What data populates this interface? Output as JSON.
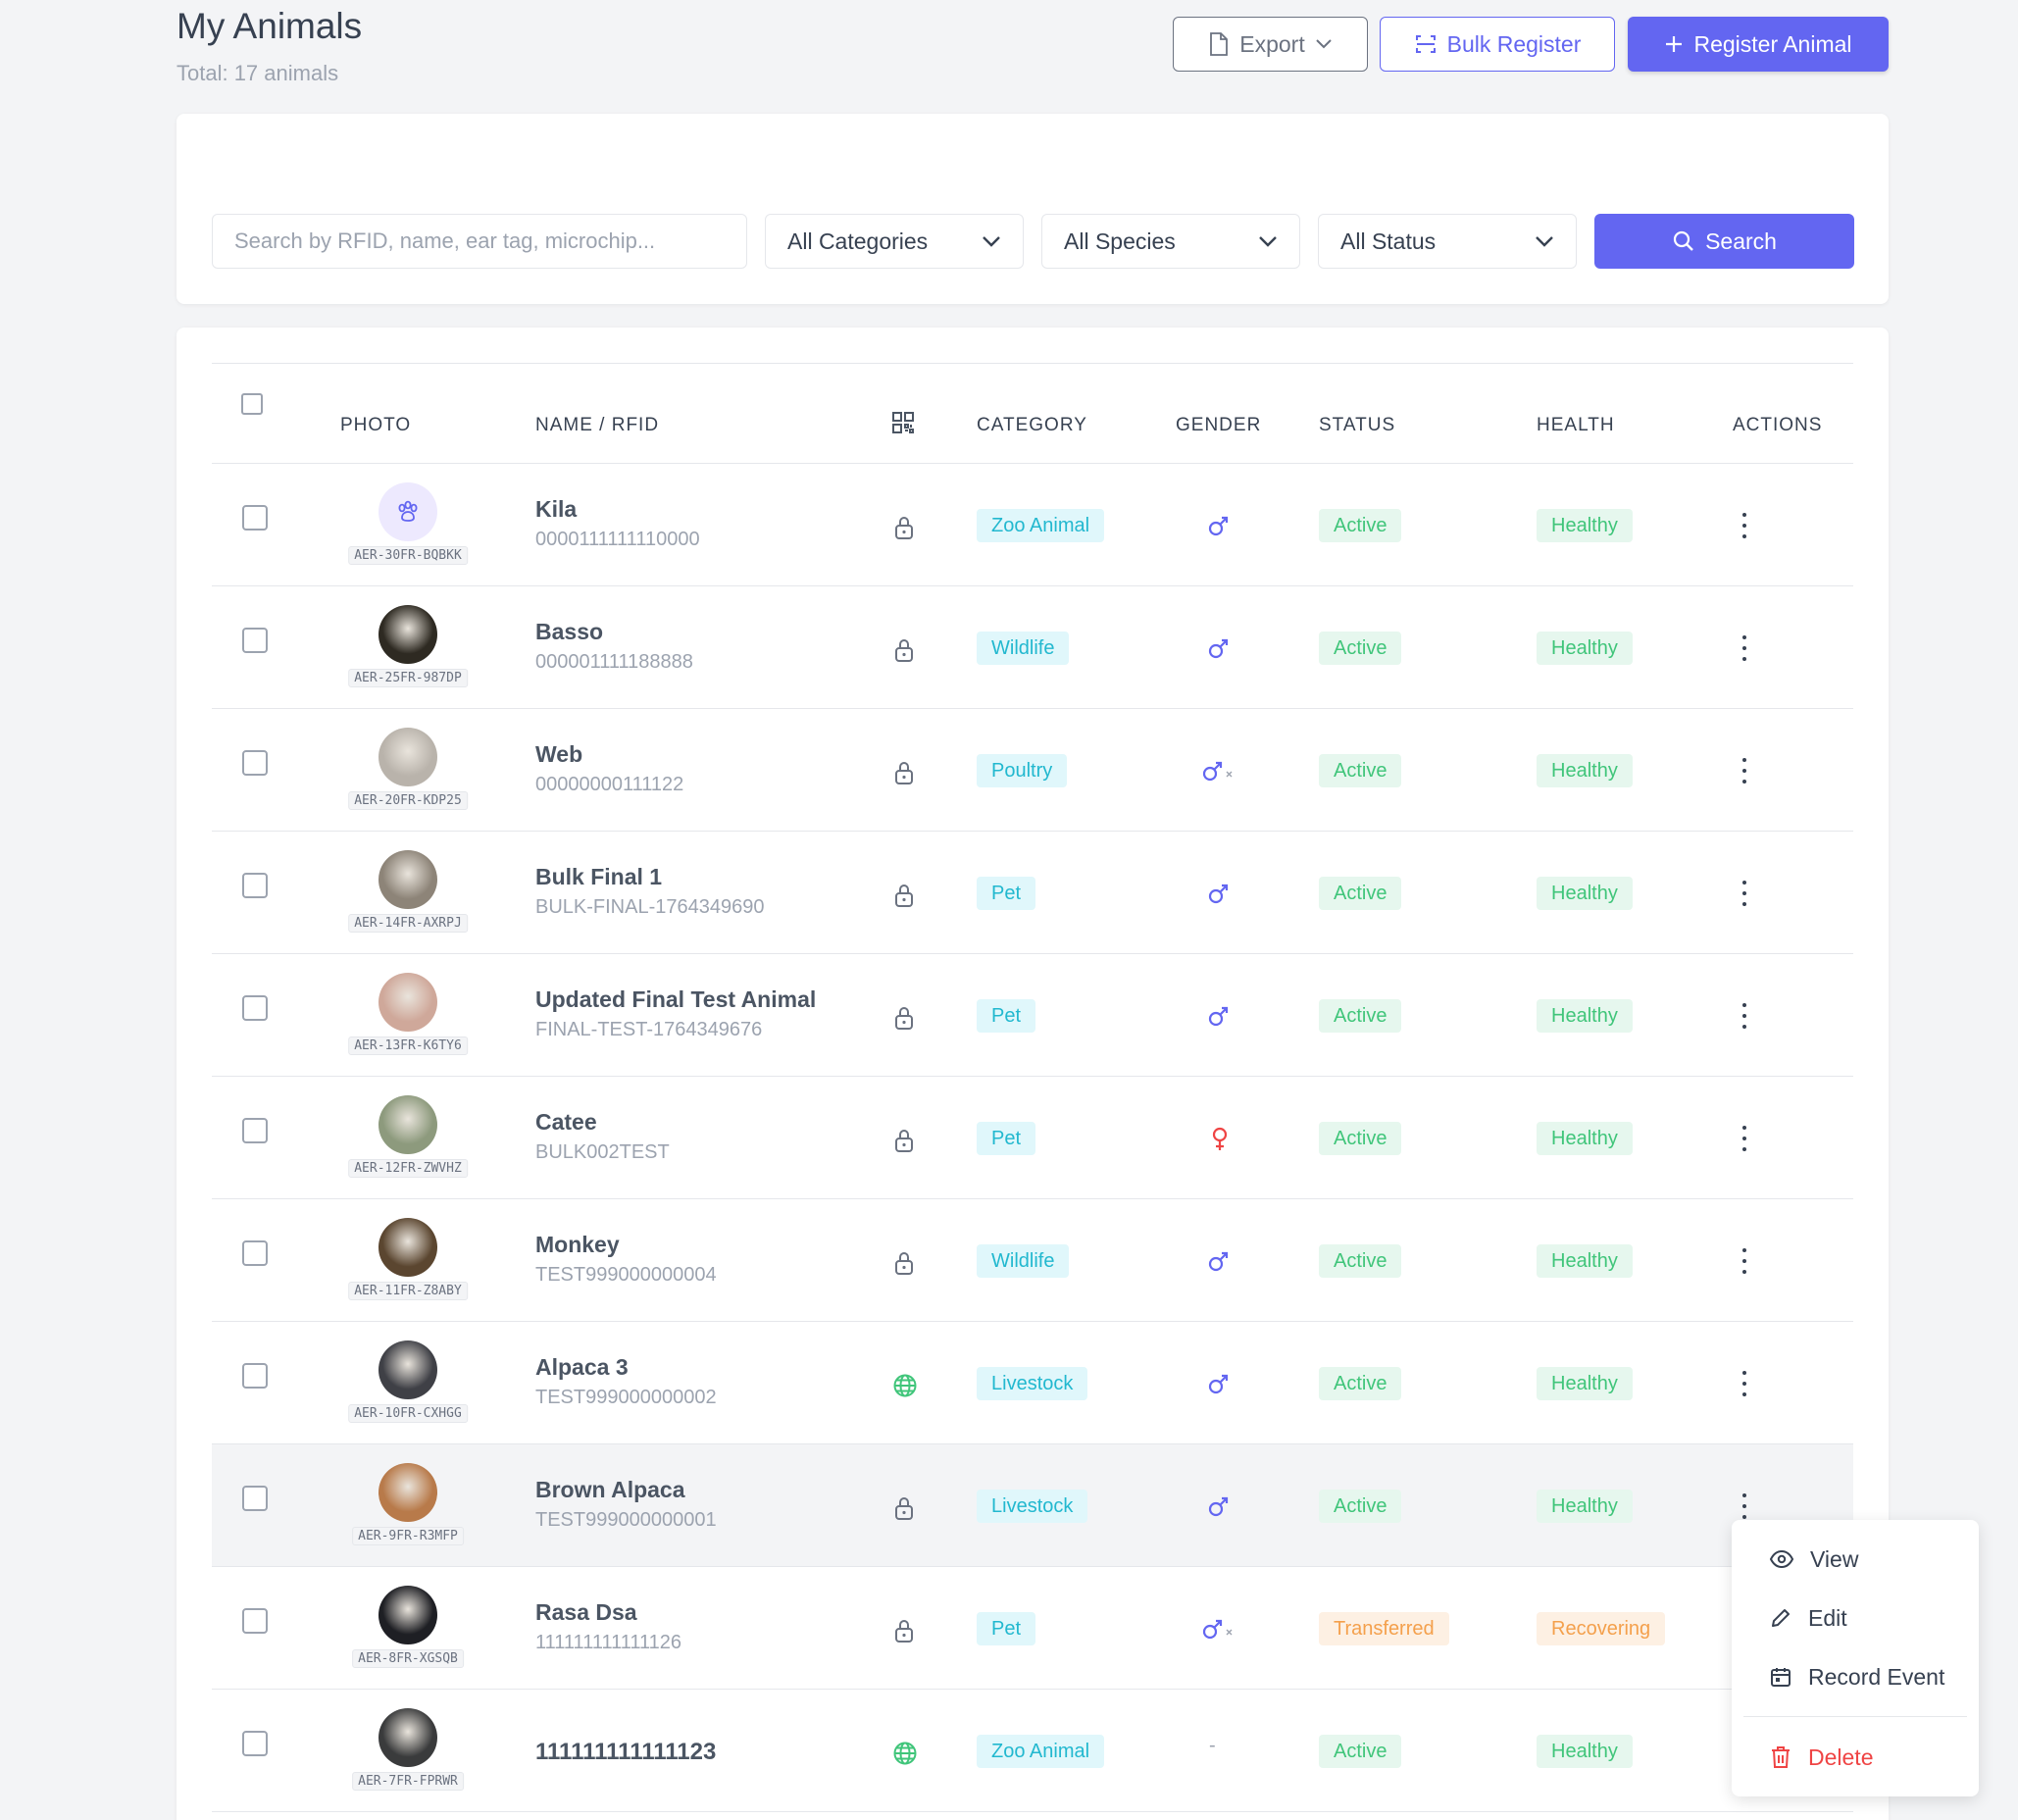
{
  "header": {
    "title": "My Animals",
    "subtitle": "Total: 17 animals",
    "export_label": "Export",
    "bulk_label": "Bulk Register",
    "register_label": "Register Animal"
  },
  "filters": {
    "search_placeholder": "Search by RFID, name, ear tag, microchip...",
    "category": "All Categories",
    "species": "All Species",
    "status": "All Status",
    "search_button": "Search"
  },
  "table": {
    "columns": {
      "photo": "PHOTO",
      "name": "NAME / RFID",
      "category": "CATEGORY",
      "gender": "GENDER",
      "status": "STATUS",
      "health": "HEALTH",
      "actions": "ACTIONS"
    },
    "rows": [
      {
        "tag": "AER-30FR-BQBKK",
        "name": "Kila",
        "rfid": "0000111111110000",
        "access": "lock",
        "category": "Zoo Animal",
        "gender": "male",
        "status": "Active",
        "health": "Healthy",
        "photo": "paw"
      },
      {
        "tag": "AER-25FR-987DP",
        "name": "Basso",
        "rfid": "000001111188888",
        "access": "lock",
        "category": "Wildlife",
        "gender": "male",
        "status": "Active",
        "health": "Healthy",
        "photo": "#2e2a22"
      },
      {
        "tag": "AER-20FR-KDP25",
        "name": "Web",
        "rfid": "00000000111122",
        "access": "lock",
        "category": "Poultry",
        "gender": "unknown",
        "status": "Active",
        "health": "Healthy",
        "photo": "#b9b3ab"
      },
      {
        "tag": "AER-14FR-AXRPJ",
        "name": "Bulk Final 1",
        "rfid": "BULK-FINAL-1764349690",
        "access": "lock",
        "category": "Pet",
        "gender": "male",
        "status": "Active",
        "health": "Healthy",
        "photo": "#8d8478"
      },
      {
        "tag": "AER-13FR-K6TY6",
        "name": "Updated Final Test Animal",
        "rfid": "FINAL-TEST-1764349676",
        "access": "lock",
        "category": "Pet",
        "gender": "male",
        "status": "Active",
        "health": "Healthy",
        "photo": "#cfa89a"
      },
      {
        "tag": "AER-12FR-ZWVHZ",
        "name": "Catee",
        "rfid": "BULK002TEST",
        "access": "lock",
        "category": "Pet",
        "gender": "female",
        "status": "Active",
        "health": "Healthy",
        "photo": "#8d9a7d"
      },
      {
        "tag": "AER-11FR-Z8ABY",
        "name": "Monkey",
        "rfid": "TEST999000000004",
        "access": "lock",
        "category": "Wildlife",
        "gender": "male",
        "status": "Active",
        "health": "Healthy",
        "photo": "#5b4630"
      },
      {
        "tag": "AER-10FR-CXHGG",
        "name": "Alpaca 3",
        "rfid": "TEST999000000002",
        "access": "globe",
        "category": "Livestock",
        "gender": "male",
        "status": "Active",
        "health": "Healthy",
        "photo": "#3f4046"
      },
      {
        "tag": "AER-9FR-R3MFP",
        "name": "Brown Alpaca",
        "rfid": "TEST999000000001",
        "access": "lock",
        "category": "Livestock",
        "gender": "male",
        "status": "Active",
        "health": "Healthy",
        "photo": "#b87a4a",
        "highlight": true
      },
      {
        "tag": "AER-8FR-XGSQB",
        "name": "Rasa Dsa",
        "rfid": "111111111111126",
        "access": "lock",
        "category": "Pet",
        "gender": "unknown",
        "status": "Transferred",
        "health": "Recovering",
        "photo": "#1e1f24"
      },
      {
        "tag": "AER-7FR-FPRWR",
        "name": "111111111111123",
        "rfid": "",
        "access": "globe",
        "category": "Zoo Animal",
        "gender": "none",
        "status": "Active",
        "health": "Healthy",
        "photo": "#3a3b3c"
      }
    ]
  },
  "row_menu": {
    "view": "View",
    "edit": "Edit",
    "record_event": "Record Event",
    "delete": "Delete"
  },
  "colors": {
    "accent": "#6366f1",
    "cyan": "#22b8cf",
    "green": "#40c57a",
    "orange": "#f4a04c",
    "male": "#6366f1",
    "female": "#ef4444",
    "danger": "#ef4444"
  }
}
